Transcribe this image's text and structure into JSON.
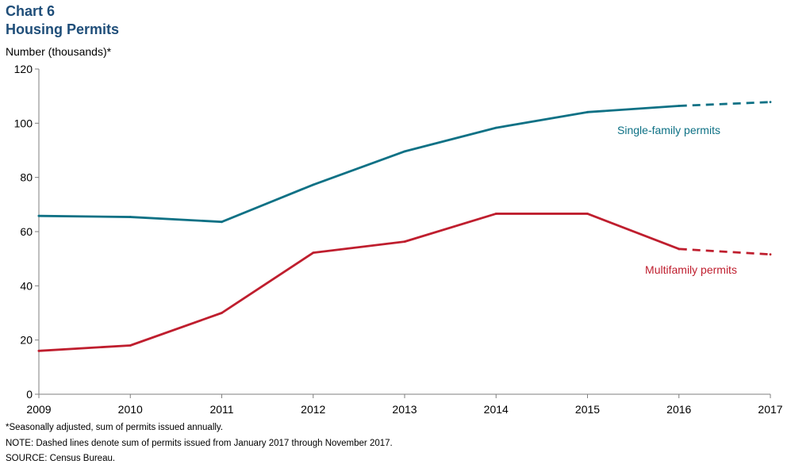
{
  "header": {
    "chart_number": "Chart 6",
    "title": "Housing Permits",
    "ylabel": "Number (thousands)*"
  },
  "footnotes": {
    "note1": "*Seasonally adjusted, sum of permits issued annually.",
    "note2": "NOTE: Dashed lines denote sum of permits issued from January 2017 through November 2017.",
    "source": "SOURCE: Census Bureau."
  },
  "colors": {
    "single_family": "#0e7185",
    "multifamily": "#bf1e2e",
    "title": "#1f4e79"
  },
  "chart_data": {
    "type": "line",
    "title": "Housing Permits",
    "xlabel": "",
    "ylabel": "Number (thousands)*",
    "x": [
      "2009",
      "2010",
      "2011",
      "2012",
      "2013",
      "2014",
      "2015",
      "2016",
      "2017"
    ],
    "ylim": [
      0,
      120
    ],
    "yticks": [
      0,
      20,
      40,
      60,
      80,
      100,
      120
    ],
    "grid": false,
    "series": [
      {
        "name": "Single-family permits",
        "color": "#0e7185",
        "values": [
          65.8,
          65.4,
          63.6,
          77.3,
          89.6,
          98.3,
          104.1,
          106.4,
          107.8
        ],
        "dashed_from_index": 7
      },
      {
        "name": "Multifamily permits",
        "color": "#bf1e2e",
        "values": [
          16.0,
          18.0,
          30.0,
          52.2,
          56.3,
          66.6,
          66.6,
          53.6,
          51.6
        ],
        "dashed_from_index": 7
      }
    ]
  }
}
